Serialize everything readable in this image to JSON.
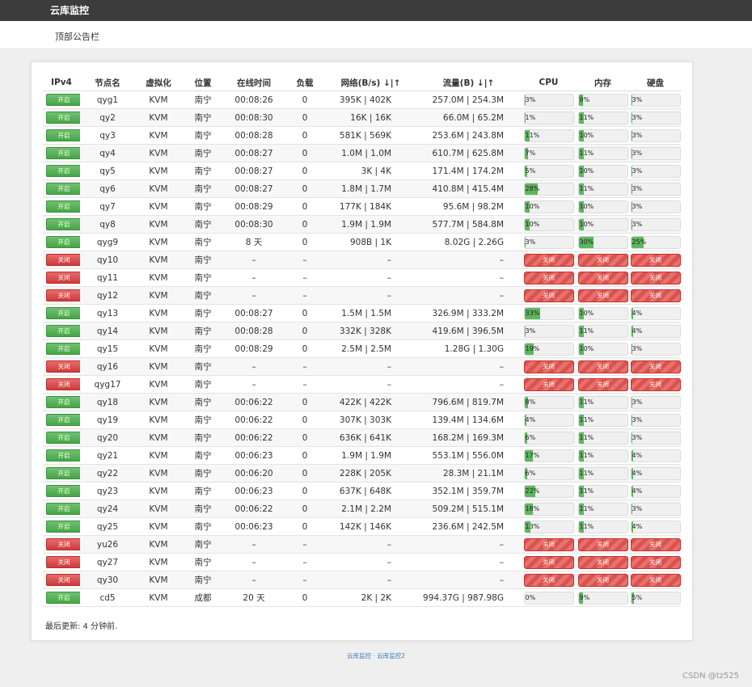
{
  "app": {
    "title": "云库监控"
  },
  "notice": "顶部公告栏",
  "columns": [
    "IPv4",
    "节点名",
    "虚拟化",
    "位置",
    "在线时间",
    "负载",
    "网络(B/s) ↓|↑",
    "流量(B) ↓|↑",
    "CPU",
    "内存",
    "硬盘"
  ],
  "rows": [
    {
      "ipv4": "开启",
      "on": true,
      "name": "qyg1",
      "virt": "KVM",
      "loc": "南宁",
      "uptime": "00:08:26",
      "load": "0",
      "net": "395K | 402K",
      "traffic": "257.0M | 254.3M",
      "cpu": "3%",
      "mem": "9%",
      "disk": "3%",
      "cpu_v": 3,
      "mem_v": 9,
      "disk_v": 3
    },
    {
      "ipv4": "开启",
      "on": true,
      "name": "qy2",
      "virt": "KVM",
      "loc": "南宁",
      "uptime": "00:08:30",
      "load": "0",
      "net": "16K | 16K",
      "traffic": "66.0M | 65.2M",
      "cpu": "1%",
      "mem": "11%",
      "disk": "3%",
      "cpu_v": 1,
      "mem_v": 11,
      "disk_v": 3
    },
    {
      "ipv4": "开启",
      "on": true,
      "name": "qy3",
      "virt": "KVM",
      "loc": "南宁",
      "uptime": "00:08:28",
      "load": "0",
      "net": "581K | 569K",
      "traffic": "253.6M | 243.8M",
      "cpu": "11%",
      "mem": "10%",
      "disk": "3%",
      "cpu_v": 11,
      "mem_v": 10,
      "disk_v": 3
    },
    {
      "ipv4": "开启",
      "on": true,
      "name": "qy4",
      "virt": "KVM",
      "loc": "南宁",
      "uptime": "00:08:27",
      "load": "0",
      "net": "1.0M | 1.0M",
      "traffic": "610.7M | 625.8M",
      "cpu": "7%",
      "mem": "11%",
      "disk": "3%",
      "cpu_v": 7,
      "mem_v": 11,
      "disk_v": 3
    },
    {
      "ipv4": "开启",
      "on": true,
      "name": "qy5",
      "virt": "KVM",
      "loc": "南宁",
      "uptime": "00:08:27",
      "load": "0",
      "net": "3K | 4K",
      "traffic": "171.4M | 174.2M",
      "cpu": "5%",
      "mem": "10%",
      "disk": "3%",
      "cpu_v": 5,
      "mem_v": 10,
      "disk_v": 3
    },
    {
      "ipv4": "开启",
      "on": true,
      "name": "qy6",
      "virt": "KVM",
      "loc": "南宁",
      "uptime": "00:08:27",
      "load": "0",
      "net": "1.8M | 1.7M",
      "traffic": "410.8M | 415.4M",
      "cpu": "28%",
      "mem": "11%",
      "disk": "3%",
      "cpu_v": 28,
      "mem_v": 11,
      "disk_v": 3
    },
    {
      "ipv4": "开启",
      "on": true,
      "name": "qy7",
      "virt": "KVM",
      "loc": "南宁",
      "uptime": "00:08:29",
      "load": "0",
      "net": "177K | 184K",
      "traffic": "95.6M | 98.2M",
      "cpu": "10%",
      "mem": "10%",
      "disk": "3%",
      "cpu_v": 10,
      "mem_v": 10,
      "disk_v": 3
    },
    {
      "ipv4": "开启",
      "on": true,
      "name": "qy8",
      "virt": "KVM",
      "loc": "南宁",
      "uptime": "00:08:30",
      "load": "0",
      "net": "1.9M | 1.9M",
      "traffic": "577.7M | 584.8M",
      "cpu": "10%",
      "mem": "10%",
      "disk": "3%",
      "cpu_v": 10,
      "mem_v": 10,
      "disk_v": 3
    },
    {
      "ipv4": "开启",
      "on": true,
      "name": "qyg9",
      "virt": "KVM",
      "loc": "南宁",
      "uptime": "8 天",
      "load": "0",
      "net": "908B | 1K",
      "traffic": "8.02G | 2.26G",
      "cpu": "3%",
      "mem": "30%",
      "disk": "25%",
      "cpu_v": 3,
      "mem_v": 30,
      "disk_v": 25
    },
    {
      "ipv4": "关闭",
      "on": false,
      "name": "qy10",
      "virt": "KVM",
      "loc": "南宁",
      "uptime": "–",
      "load": "–",
      "net": "–",
      "traffic": "–",
      "cpu": "关闭",
      "mem": "关闭",
      "disk": "关闭",
      "cpu_v": 0,
      "mem_v": 0,
      "disk_v": 0
    },
    {
      "ipv4": "关闭",
      "on": false,
      "name": "qy11",
      "virt": "KVM",
      "loc": "南宁",
      "uptime": "–",
      "load": "–",
      "net": "–",
      "traffic": "–",
      "cpu": "关闭",
      "mem": "关闭",
      "disk": "关闭",
      "cpu_v": 0,
      "mem_v": 0,
      "disk_v": 0
    },
    {
      "ipv4": "关闭",
      "on": false,
      "name": "qy12",
      "virt": "KVM",
      "loc": "南宁",
      "uptime": "–",
      "load": "–",
      "net": "–",
      "traffic": "–",
      "cpu": "关闭",
      "mem": "关闭",
      "disk": "关闭",
      "cpu_v": 0,
      "mem_v": 0,
      "disk_v": 0
    },
    {
      "ipv4": "开启",
      "on": true,
      "name": "qy13",
      "virt": "KVM",
      "loc": "南宁",
      "uptime": "00:08:27",
      "load": "0",
      "net": "1.5M | 1.5M",
      "traffic": "326.9M | 333.2M",
      "cpu": "33%",
      "mem": "10%",
      "disk": "4%",
      "cpu_v": 33,
      "mem_v": 10,
      "disk_v": 4
    },
    {
      "ipv4": "开启",
      "on": true,
      "name": "qy14",
      "virt": "KVM",
      "loc": "南宁",
      "uptime": "00:08:28",
      "load": "0",
      "net": "332K | 328K",
      "traffic": "419.6M | 396.5M",
      "cpu": "3%",
      "mem": "11%",
      "disk": "4%",
      "cpu_v": 3,
      "mem_v": 11,
      "disk_v": 4
    },
    {
      "ipv4": "开启",
      "on": true,
      "name": "qy15",
      "virt": "KVM",
      "loc": "南宁",
      "uptime": "00:08:29",
      "load": "0",
      "net": "2.5M | 2.5M",
      "traffic": "1.28G | 1.30G",
      "cpu": "19%",
      "mem": "10%",
      "disk": "3%",
      "cpu_v": 19,
      "mem_v": 10,
      "disk_v": 3
    },
    {
      "ipv4": "关闭",
      "on": false,
      "name": "qy16",
      "virt": "KVM",
      "loc": "南宁",
      "uptime": "–",
      "load": "–",
      "net": "–",
      "traffic": "–",
      "cpu": "关闭",
      "mem": "关闭",
      "disk": "关闭",
      "cpu_v": 0,
      "mem_v": 0,
      "disk_v": 0
    },
    {
      "ipv4": "关闭",
      "on": false,
      "name": "qyg17",
      "virt": "KVM",
      "loc": "南宁",
      "uptime": "–",
      "load": "–",
      "net": "–",
      "traffic": "–",
      "cpu": "关闭",
      "mem": "关闭",
      "disk": "关闭",
      "cpu_v": 0,
      "mem_v": 0,
      "disk_v": 0
    },
    {
      "ipv4": "开启",
      "on": true,
      "name": "qy18",
      "virt": "KVM",
      "loc": "南宁",
      "uptime": "00:06:22",
      "load": "0",
      "net": "422K | 422K",
      "traffic": "796.6M | 819.7M",
      "cpu": "8%",
      "mem": "11%",
      "disk": "3%",
      "cpu_v": 8,
      "mem_v": 11,
      "disk_v": 3
    },
    {
      "ipv4": "开启",
      "on": true,
      "name": "qy19",
      "virt": "KVM",
      "loc": "南宁",
      "uptime": "00:06:22",
      "load": "0",
      "net": "307K | 303K",
      "traffic": "139.4M | 134.6M",
      "cpu": "4%",
      "mem": "11%",
      "disk": "3%",
      "cpu_v": 4,
      "mem_v": 11,
      "disk_v": 3
    },
    {
      "ipv4": "开启",
      "on": true,
      "name": "qy20",
      "virt": "KVM",
      "loc": "南宁",
      "uptime": "00:06:22",
      "load": "0",
      "net": "636K | 641K",
      "traffic": "168.2M | 169.3M",
      "cpu": "6%",
      "mem": "11%",
      "disk": "3%",
      "cpu_v": 6,
      "mem_v": 11,
      "disk_v": 3
    },
    {
      "ipv4": "开启",
      "on": true,
      "name": "qy21",
      "virt": "KVM",
      "loc": "南宁",
      "uptime": "00:06:23",
      "load": "0",
      "net": "1.9M | 1.9M",
      "traffic": "553.1M | 556.0M",
      "cpu": "17%",
      "mem": "11%",
      "disk": "4%",
      "cpu_v": 17,
      "mem_v": 11,
      "disk_v": 4
    },
    {
      "ipv4": "开启",
      "on": true,
      "name": "qy22",
      "virt": "KVM",
      "loc": "南宁",
      "uptime": "00:06:20",
      "load": "0",
      "net": "228K | 205K",
      "traffic": "28.3M | 21.1M",
      "cpu": "6%",
      "mem": "11%",
      "disk": "4%",
      "cpu_v": 6,
      "mem_v": 11,
      "disk_v": 4
    },
    {
      "ipv4": "开启",
      "on": true,
      "name": "qy23",
      "virt": "KVM",
      "loc": "南宁",
      "uptime": "00:06:23",
      "load": "0",
      "net": "637K | 648K",
      "traffic": "352.1M | 359.7M",
      "cpu": "22%",
      "mem": "11%",
      "disk": "4%",
      "cpu_v": 22,
      "mem_v": 11,
      "disk_v": 4
    },
    {
      "ipv4": "开启",
      "on": true,
      "name": "qy24",
      "virt": "KVM",
      "loc": "南宁",
      "uptime": "00:06:22",
      "load": "0",
      "net": "2.1M | 2.2M",
      "traffic": "509.2M | 515.1M",
      "cpu": "18%",
      "mem": "11%",
      "disk": "3%",
      "cpu_v": 18,
      "mem_v": 11,
      "disk_v": 3
    },
    {
      "ipv4": "开启",
      "on": true,
      "name": "qy25",
      "virt": "KVM",
      "loc": "南宁",
      "uptime": "00:06:23",
      "load": "0",
      "net": "142K | 146K",
      "traffic": "236.6M | 242.5M",
      "cpu": "13%",
      "mem": "11%",
      "disk": "4%",
      "cpu_v": 13,
      "mem_v": 11,
      "disk_v": 4
    },
    {
      "ipv4": "关闭",
      "on": false,
      "name": "yu26",
      "virt": "KVM",
      "loc": "南宁",
      "uptime": "–",
      "load": "–",
      "net": "–",
      "traffic": "–",
      "cpu": "关闭",
      "mem": "关闭",
      "disk": "关闭",
      "cpu_v": 0,
      "mem_v": 0,
      "disk_v": 0
    },
    {
      "ipv4": "关闭",
      "on": false,
      "name": "qy27",
      "virt": "KVM",
      "loc": "南宁",
      "uptime": "–",
      "load": "–",
      "net": "–",
      "traffic": "–",
      "cpu": "关闭",
      "mem": "关闭",
      "disk": "关闭",
      "cpu_v": 0,
      "mem_v": 0,
      "disk_v": 0
    },
    {
      "ipv4": "关闭",
      "on": false,
      "name": "qy30",
      "virt": "KVM",
      "loc": "南宁",
      "uptime": "–",
      "load": "–",
      "net": "–",
      "traffic": "–",
      "cpu": "关闭",
      "mem": "关闭",
      "disk": "关闭",
      "cpu_v": 0,
      "mem_v": 0,
      "disk_v": 0
    },
    {
      "ipv4": "开启",
      "on": true,
      "name": "cd5",
      "virt": "KVM",
      "loc": "成都",
      "uptime": "20 天",
      "load": "0",
      "net": "2K | 2K",
      "traffic": "994.37G | 987.98G",
      "cpu": "0%",
      "mem": "9%",
      "disk": "5%",
      "cpu_v": 0,
      "mem_v": 9,
      "disk_v": 5
    }
  ],
  "updated": "最后更新: 4 分钟前.",
  "footer": "云库监控 · 云库监控2",
  "watermark": "CSDN @tz525",
  "colors": {
    "on": "#5cb85c",
    "off": "#d9534f",
    "topbar": "#3c3c3c",
    "link": "#337ab7"
  }
}
